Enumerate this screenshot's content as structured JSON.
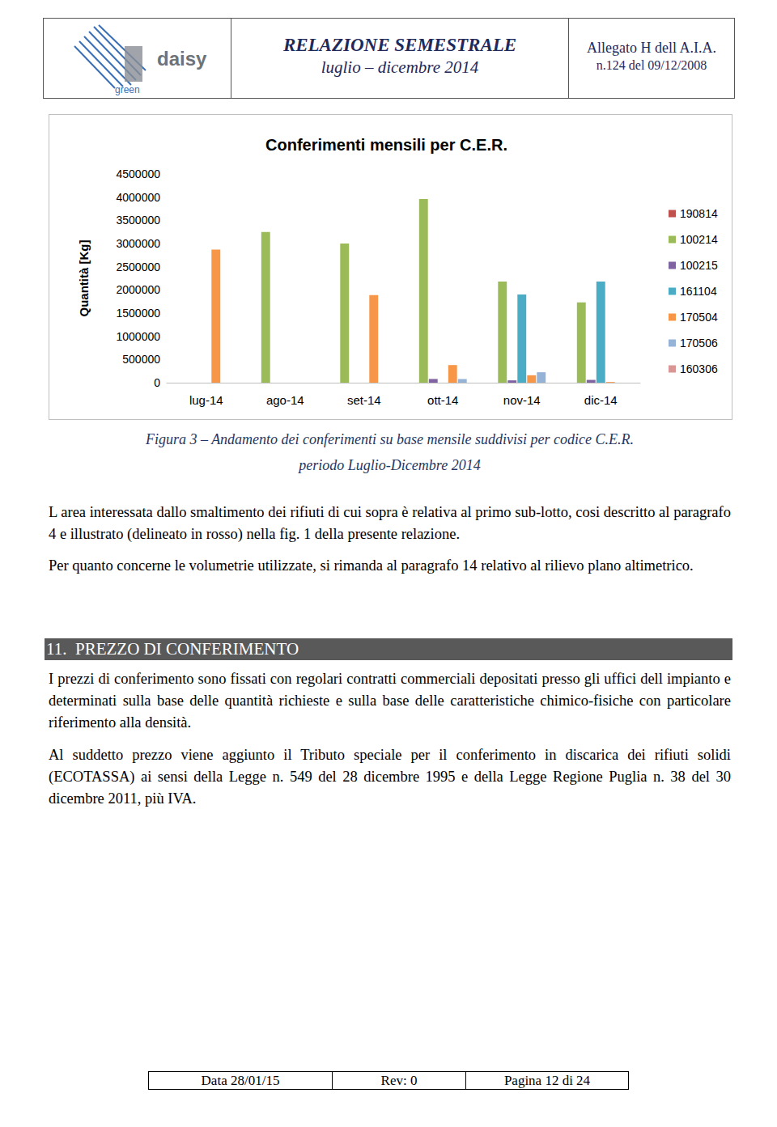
{
  "header": {
    "logo_text": "daisy",
    "logo_subtext": "green",
    "title": "RELAZIONE SEMESTRALE",
    "period": "luglio – dicembre 2014",
    "reference": "Allegato H dell A.I.A.",
    "reference_number": "n.124 del 09/12/2008"
  },
  "chart_data": {
    "type": "bar",
    "title": "Conferimenti mensili per C.E.R.",
    "y_label": "Quantità [Kg]",
    "categories": [
      "lug-14",
      "ago-14",
      "set-14",
      "ott-14",
      "nov-14",
      "dic-14"
    ],
    "series": [
      {
        "name": "190814",
        "color": "#c0504d",
        "values": [
          0,
          0,
          0,
          0,
          0,
          0
        ]
      },
      {
        "name": "100214",
        "color": "#9bbb59",
        "values": [
          0,
          3250000,
          3000000,
          3960000,
          2180000,
          1730000
        ]
      },
      {
        "name": "100215",
        "color": "#8064a2",
        "values": [
          0,
          0,
          0,
          80000,
          50000,
          60000
        ]
      },
      {
        "name": "161104",
        "color": "#4bacc6",
        "values": [
          0,
          0,
          0,
          0,
          1900000,
          2180000
        ]
      },
      {
        "name": "170504",
        "color": "#f79646",
        "values": [
          2870000,
          0,
          1890000,
          380000,
          160000,
          15000
        ]
      },
      {
        "name": "170506",
        "color": "#95b3d7",
        "values": [
          0,
          0,
          0,
          80000,
          225000,
          0
        ]
      },
      {
        "name": "160306",
        "color": "#d99694",
        "values": [
          0,
          0,
          0,
          0,
          0,
          0
        ]
      }
    ],
    "ylim": [
      0,
      4500000
    ],
    "yticks": [
      0,
      500000,
      1000000,
      1500000,
      2000000,
      2500000,
      3000000,
      3500000,
      4000000,
      4500000
    ],
    "grid": false,
    "legend": "right"
  },
  "caption": [
    "Figura 3 – Andamento dei conferimenti su base mensile suddivisi per codice C.E.R.",
    "periodo Luglio-Dicembre 2014"
  ],
  "paragraphs": [
    "L area interessata dallo smaltimento dei rifiuti di cui sopra è relativa al primo sub-lotto, cosi descritto al paragrafo 4 e illustrato (delineato in rosso) nella fig. 1 della presente relazione.",
    "Per quanto concerne le volumetrie utilizzate, si rimanda al paragrafo 14 relativo al rilievo plano altimetrico."
  ],
  "section": {
    "number": "11.",
    "title": "PREZZO DI CONFERIMENTO"
  },
  "section_paragraphs": [
    "I prezzi di conferimento sono fissati con regolari contratti commerciali depositati presso gli uffici dell impianto e determinati sulla base delle quantità richieste e sulla base delle caratteristiche chimico-fisiche con particolare riferimento alla densità.",
    "Al suddetto prezzo viene aggiunto il Tributo speciale per il conferimento in discarica dei rifiuti solidi (ECOTASSA) ai sensi della Legge n. 549 del 28 dicembre 1995 e della Legge Regione Puglia n. 38 del 30 dicembre 2011, più IVA."
  ],
  "footer": {
    "date": "Data 28/01/15",
    "revision": "Rev: 0",
    "page": "Pagina 12 di 24"
  }
}
